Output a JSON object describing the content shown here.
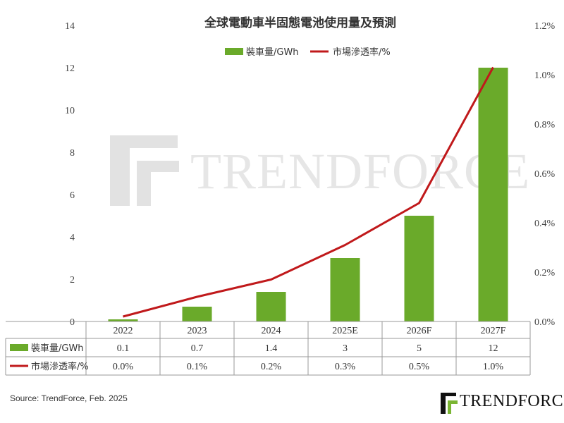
{
  "brand": {
    "watermark_text": "TRENDFORCE",
    "logo_text": "TRENDFORCE",
    "bar_color": "#6aaa2a",
    "line_color": "#c0191b",
    "logo_green": "#7ab533"
  },
  "source": "Source: TrendForce, Feb. 2025",
  "chart_data": {
    "type": "bar",
    "title": "全球電動車半固態電池使用量及預測",
    "categories": [
      "2022",
      "2023",
      "2024",
      "2025E",
      "2026F",
      "2027F"
    ],
    "series": [
      {
        "name": "裝車量/GWh",
        "type": "bar",
        "axis": "left",
        "values": [
          0.1,
          0.7,
          1.4,
          3,
          5,
          12
        ],
        "labels": [
          "0.1",
          "0.7",
          "1.4",
          "3",
          "5",
          "12"
        ]
      },
      {
        "name": "市場滲透率/%",
        "type": "line",
        "axis": "right",
        "values": [
          0.02,
          0.1,
          0.17,
          0.31,
          0.48,
          1.03
        ],
        "labels": [
          "0.0%",
          "0.1%",
          "0.2%",
          "0.3%",
          "0.5%",
          "1.0%"
        ]
      }
    ],
    "y_left": {
      "ylim": [
        0,
        14
      ],
      "ticks": [
        "0",
        "2",
        "4",
        "6",
        "8",
        "10",
        "12",
        "14"
      ]
    },
    "y_right": {
      "ylim": [
        0,
        1.2
      ],
      "ticks": [
        "0.0%",
        "0.2%",
        "0.4%",
        "0.6%",
        "0.8%",
        "1.0%",
        "1.2%"
      ]
    },
    "legend_position": "top",
    "grid": false,
    "data_table": true
  }
}
